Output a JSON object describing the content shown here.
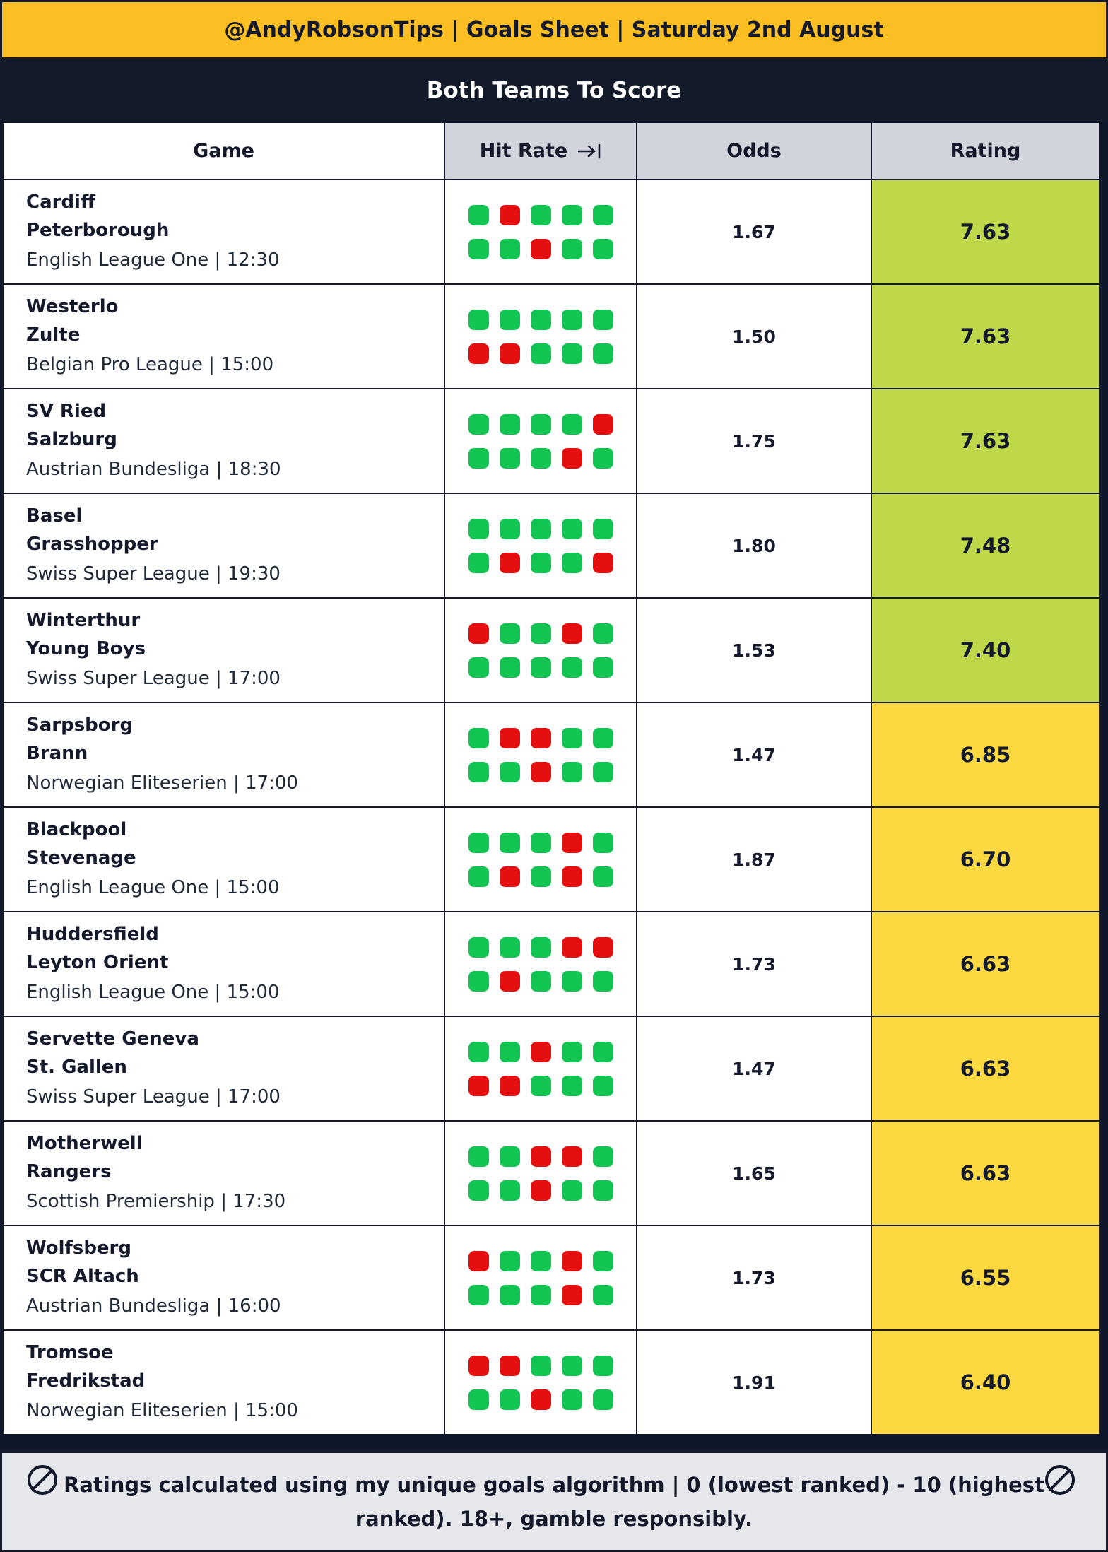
{
  "header": {
    "title": "@AndyRobsonTips | Goals Sheet | Saturday 2nd August"
  },
  "section": {
    "title": "Both Teams To Score"
  },
  "columns": {
    "game": "Game",
    "hit_rate": "Hit Rate",
    "odds": "Odds",
    "rating": "Rating"
  },
  "icons": {
    "hit_rate_sort": "arrow-right-to-bar-icon",
    "footer_badge": "18-plus-icon"
  },
  "colors": {
    "hit": "#12c451",
    "miss": "#e60f0f",
    "rating_high": "#bed84a",
    "rating_mid": "#fcd940",
    "header": "#fbbf24",
    "section": "#131a2a"
  },
  "matches": [
    {
      "home": "Cardiff",
      "away": "Peterborough",
      "league": "English League One | 12:30",
      "hits": [
        "g",
        "r",
        "g",
        "g",
        "g",
        "g",
        "g",
        "r",
        "g",
        "g"
      ],
      "odds": "1.67",
      "rating": "7.63",
      "tier": "high"
    },
    {
      "home": "Westerlo",
      "away": "Zulte",
      "league": "Belgian Pro League | 15:00",
      "hits": [
        "g",
        "g",
        "g",
        "g",
        "g",
        "r",
        "r",
        "g",
        "g",
        "g"
      ],
      "odds": "1.50",
      "rating": "7.63",
      "tier": "high"
    },
    {
      "home": "SV Ried",
      "away": "Salzburg",
      "league": "Austrian Bundesliga | 18:30",
      "hits": [
        "g",
        "g",
        "g",
        "g",
        "r",
        "g",
        "g",
        "g",
        "r",
        "g"
      ],
      "odds": "1.75",
      "rating": "7.63",
      "tier": "high"
    },
    {
      "home": "Basel",
      "away": "Grasshopper",
      "league": "Swiss Super League | 19:30",
      "hits": [
        "g",
        "g",
        "g",
        "g",
        "g",
        "g",
        "r",
        "g",
        "g",
        "r"
      ],
      "odds": "1.80",
      "rating": "7.48",
      "tier": "high"
    },
    {
      "home": "Winterthur",
      "away": "Young Boys",
      "league": "Swiss Super League | 17:00",
      "hits": [
        "r",
        "g",
        "g",
        "r",
        "g",
        "g",
        "g",
        "g",
        "g",
        "g"
      ],
      "odds": "1.53",
      "rating": "7.40",
      "tier": "high"
    },
    {
      "home": "Sarpsborg",
      "away": "Brann",
      "league": "Norwegian Eliteserien | 17:00",
      "hits": [
        "g",
        "r",
        "r",
        "g",
        "g",
        "g",
        "g",
        "r",
        "g",
        "g"
      ],
      "odds": "1.47",
      "rating": "6.85",
      "tier": "mid"
    },
    {
      "home": "Blackpool",
      "away": "Stevenage",
      "league": "English League One | 15:00",
      "hits": [
        "g",
        "g",
        "g",
        "r",
        "g",
        "g",
        "r",
        "g",
        "r",
        "g"
      ],
      "odds": "1.87",
      "rating": "6.70",
      "tier": "mid"
    },
    {
      "home": "Huddersfield",
      "away": "Leyton Orient",
      "league": "English League One | 15:00",
      "hits": [
        "g",
        "g",
        "g",
        "r",
        "r",
        "g",
        "r",
        "g",
        "g",
        "g"
      ],
      "odds": "1.73",
      "rating": "6.63",
      "tier": "mid"
    },
    {
      "home": "Servette Geneva",
      "away": "St. Gallen",
      "league": "Swiss Super League | 17:00",
      "hits": [
        "g",
        "g",
        "r",
        "g",
        "g",
        "r",
        "r",
        "g",
        "g",
        "g"
      ],
      "odds": "1.47",
      "rating": "6.63",
      "tier": "mid"
    },
    {
      "home": "Motherwell",
      "away": "Rangers",
      "league": "Scottish Premiership | 17:30",
      "hits": [
        "g",
        "g",
        "r",
        "r",
        "g",
        "g",
        "g",
        "r",
        "g",
        "g"
      ],
      "odds": "1.65",
      "rating": "6.63",
      "tier": "mid"
    },
    {
      "home": "Wolfsberg",
      "away": "SCR Altach",
      "league": "Austrian Bundesliga | 16:00",
      "hits": [
        "r",
        "g",
        "g",
        "r",
        "g",
        "g",
        "g",
        "g",
        "r",
        "g"
      ],
      "odds": "1.73",
      "rating": "6.55",
      "tier": "mid"
    },
    {
      "home": "Tromsoe",
      "away": "Fredrikstad",
      "league": "Norwegian Eliteserien | 15:00",
      "hits": [
        "r",
        "r",
        "g",
        "g",
        "g",
        "g",
        "g",
        "r",
        "g",
        "g"
      ],
      "odds": "1.91",
      "rating": "6.40",
      "tier": "mid"
    }
  ],
  "footer": {
    "text": "Ratings calculated using my unique goals algorithm | 0 (lowest ranked) - 10 (highest ranked). 18+, gamble responsibly."
  }
}
